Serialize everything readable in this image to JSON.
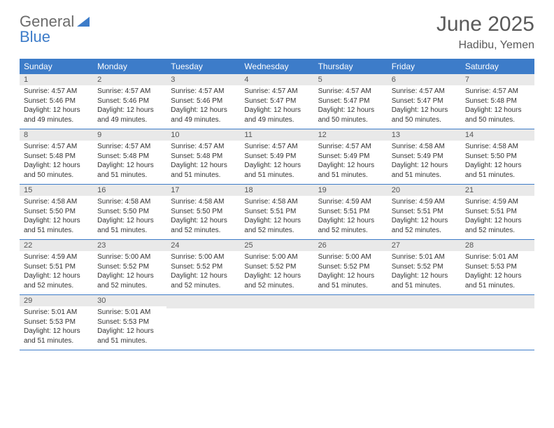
{
  "brand": {
    "part1": "General",
    "part2": "Blue"
  },
  "title": "June 2025",
  "location": "Hadibu, Yemen",
  "colors": {
    "header_bg": "#3d7cc9",
    "daynum_bg": "#e9e9e9",
    "row_border": "#3d7cc9",
    "text": "#333333",
    "title_color": "#5a5a5a"
  },
  "typography": {
    "title_fontsize": 30,
    "location_fontsize": 16,
    "dayheader_fontsize": 12,
    "daynum_fontsize": 11,
    "body_fontsize": 10
  },
  "layout": {
    "columns": 7,
    "rows": 5,
    "first_day_column": 0
  },
  "day_headers": [
    "Sunday",
    "Monday",
    "Tuesday",
    "Wednesday",
    "Thursday",
    "Friday",
    "Saturday"
  ],
  "days": [
    {
      "n": "1",
      "sr": "4:57 AM",
      "ss": "5:46 PM",
      "dl": "12 hours and 49 minutes."
    },
    {
      "n": "2",
      "sr": "4:57 AM",
      "ss": "5:46 PM",
      "dl": "12 hours and 49 minutes."
    },
    {
      "n": "3",
      "sr": "4:57 AM",
      "ss": "5:46 PM",
      "dl": "12 hours and 49 minutes."
    },
    {
      "n": "4",
      "sr": "4:57 AM",
      "ss": "5:47 PM",
      "dl": "12 hours and 49 minutes."
    },
    {
      "n": "5",
      "sr": "4:57 AM",
      "ss": "5:47 PM",
      "dl": "12 hours and 50 minutes."
    },
    {
      "n": "6",
      "sr": "4:57 AM",
      "ss": "5:47 PM",
      "dl": "12 hours and 50 minutes."
    },
    {
      "n": "7",
      "sr": "4:57 AM",
      "ss": "5:48 PM",
      "dl": "12 hours and 50 minutes."
    },
    {
      "n": "8",
      "sr": "4:57 AM",
      "ss": "5:48 PM",
      "dl": "12 hours and 50 minutes."
    },
    {
      "n": "9",
      "sr": "4:57 AM",
      "ss": "5:48 PM",
      "dl": "12 hours and 51 minutes."
    },
    {
      "n": "10",
      "sr": "4:57 AM",
      "ss": "5:48 PM",
      "dl": "12 hours and 51 minutes."
    },
    {
      "n": "11",
      "sr": "4:57 AM",
      "ss": "5:49 PM",
      "dl": "12 hours and 51 minutes."
    },
    {
      "n": "12",
      "sr": "4:57 AM",
      "ss": "5:49 PM",
      "dl": "12 hours and 51 minutes."
    },
    {
      "n": "13",
      "sr": "4:58 AM",
      "ss": "5:49 PM",
      "dl": "12 hours and 51 minutes."
    },
    {
      "n": "14",
      "sr": "4:58 AM",
      "ss": "5:50 PM",
      "dl": "12 hours and 51 minutes."
    },
    {
      "n": "15",
      "sr": "4:58 AM",
      "ss": "5:50 PM",
      "dl": "12 hours and 51 minutes."
    },
    {
      "n": "16",
      "sr": "4:58 AM",
      "ss": "5:50 PM",
      "dl": "12 hours and 51 minutes."
    },
    {
      "n": "17",
      "sr": "4:58 AM",
      "ss": "5:50 PM",
      "dl": "12 hours and 52 minutes."
    },
    {
      "n": "18",
      "sr": "4:58 AM",
      "ss": "5:51 PM",
      "dl": "12 hours and 52 minutes."
    },
    {
      "n": "19",
      "sr": "4:59 AM",
      "ss": "5:51 PM",
      "dl": "12 hours and 52 minutes."
    },
    {
      "n": "20",
      "sr": "4:59 AM",
      "ss": "5:51 PM",
      "dl": "12 hours and 52 minutes."
    },
    {
      "n": "21",
      "sr": "4:59 AM",
      "ss": "5:51 PM",
      "dl": "12 hours and 52 minutes."
    },
    {
      "n": "22",
      "sr": "4:59 AM",
      "ss": "5:51 PM",
      "dl": "12 hours and 52 minutes."
    },
    {
      "n": "23",
      "sr": "5:00 AM",
      "ss": "5:52 PM",
      "dl": "12 hours and 52 minutes."
    },
    {
      "n": "24",
      "sr": "5:00 AM",
      "ss": "5:52 PM",
      "dl": "12 hours and 52 minutes."
    },
    {
      "n": "25",
      "sr": "5:00 AM",
      "ss": "5:52 PM",
      "dl": "12 hours and 52 minutes."
    },
    {
      "n": "26",
      "sr": "5:00 AM",
      "ss": "5:52 PM",
      "dl": "12 hours and 51 minutes."
    },
    {
      "n": "27",
      "sr": "5:01 AM",
      "ss": "5:52 PM",
      "dl": "12 hours and 51 minutes."
    },
    {
      "n": "28",
      "sr": "5:01 AM",
      "ss": "5:53 PM",
      "dl": "12 hours and 51 minutes."
    },
    {
      "n": "29",
      "sr": "5:01 AM",
      "ss": "5:53 PM",
      "dl": "12 hours and 51 minutes."
    },
    {
      "n": "30",
      "sr": "5:01 AM",
      "ss": "5:53 PM",
      "dl": "12 hours and 51 minutes."
    }
  ],
  "labels": {
    "sunrise": "Sunrise:",
    "sunset": "Sunset:",
    "daylight": "Daylight:"
  }
}
